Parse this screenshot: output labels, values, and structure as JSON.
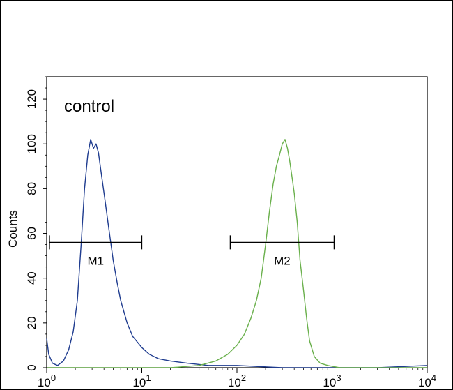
{
  "chart_data": {
    "type": "line",
    "title": "",
    "xlabel": "",
    "ylabel": "Counts",
    "xscale": "log",
    "xlim": [
      1,
      10000
    ],
    "ylim": [
      0,
      130
    ],
    "xticks": [
      {
        "value": 1,
        "base": "10",
        "exp": "0"
      },
      {
        "value": 10,
        "base": "10",
        "exp": "1"
      },
      {
        "value": 100,
        "base": "10",
        "exp": "2"
      },
      {
        "value": 1000,
        "base": "10",
        "exp": "3"
      },
      {
        "value": 10000,
        "base": "10",
        "exp": "4"
      }
    ],
    "yticks": [
      0,
      20,
      40,
      60,
      80,
      100,
      120
    ],
    "annotation": "control",
    "markers": [
      {
        "label": "M1",
        "x_start": 1.07,
        "x_end": 10,
        "y": 56
      },
      {
        "label": "M2",
        "x_start": 85,
        "x_end": 1050,
        "y": 56
      }
    ],
    "series": [
      {
        "color": "#1f3c8f",
        "points": [
          [
            1.0,
            13
          ],
          [
            1.05,
            6
          ],
          [
            1.15,
            2
          ],
          [
            1.3,
            1
          ],
          [
            1.5,
            3
          ],
          [
            1.7,
            8
          ],
          [
            1.9,
            16
          ],
          [
            2.1,
            30
          ],
          [
            2.3,
            55
          ],
          [
            2.5,
            80
          ],
          [
            2.7,
            95
          ],
          [
            2.9,
            102
          ],
          [
            3.1,
            98
          ],
          [
            3.3,
            100
          ],
          [
            3.5,
            96
          ],
          [
            3.8,
            85
          ],
          [
            4.1,
            75
          ],
          [
            4.5,
            62
          ],
          [
            5.0,
            48
          ],
          [
            5.5,
            38
          ],
          [
            6.0,
            30
          ],
          [
            7.0,
            20
          ],
          [
            8.0,
            14
          ],
          [
            10,
            9
          ],
          [
            12,
            6
          ],
          [
            15,
            4
          ],
          [
            20,
            3
          ],
          [
            30,
            2
          ],
          [
            50,
            1
          ],
          [
            100,
            1
          ],
          [
            300,
            0
          ],
          [
            1000,
            0
          ],
          [
            3000,
            0
          ],
          [
            10000,
            1
          ]
        ]
      },
      {
        "color": "#6ab04c",
        "points": [
          [
            1,
            0
          ],
          [
            20,
            0
          ],
          [
            40,
            1
          ],
          [
            60,
            3
          ],
          [
            80,
            6
          ],
          [
            100,
            10
          ],
          [
            120,
            15
          ],
          [
            140,
            22
          ],
          [
            160,
            30
          ],
          [
            180,
            40
          ],
          [
            200,
            55
          ],
          [
            220,
            70
          ],
          [
            240,
            82
          ],
          [
            260,
            90
          ],
          [
            280,
            95
          ],
          [
            300,
            100
          ],
          [
            320,
            102
          ],
          [
            340,
            98
          ],
          [
            360,
            92
          ],
          [
            380,
            85
          ],
          [
            400,
            78
          ],
          [
            430,
            65
          ],
          [
            460,
            48
          ],
          [
            500,
            35
          ],
          [
            540,
            22
          ],
          [
            580,
            12
          ],
          [
            650,
            5
          ],
          [
            750,
            2
          ],
          [
            900,
            1
          ],
          [
            1200,
            0
          ],
          [
            10000,
            0
          ]
        ]
      }
    ]
  }
}
